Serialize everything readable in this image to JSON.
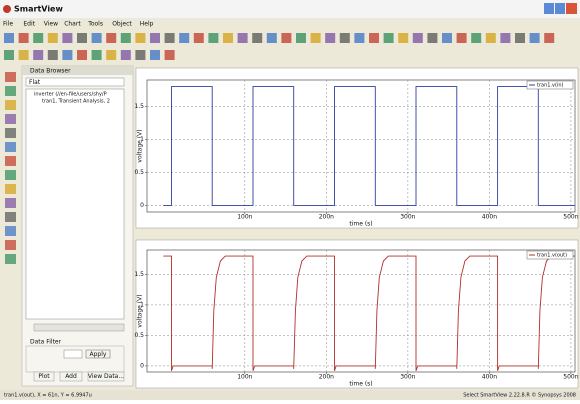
{
  "window": {
    "title": "SmartView"
  },
  "menu": [
    "File",
    "Edit",
    "View",
    "Chart",
    "Tools",
    "Object",
    "Help"
  ],
  "data_browser": {
    "title": "Data Browser",
    "filter_mode": "Flat",
    "tree": [
      "inverter (//en-file/users/shy/P",
      "tran1, Transient Analysis, 2"
    ],
    "filter_title": "Data Filter",
    "buttons": [
      "Apply",
      "Plot",
      "Add",
      "View Data..."
    ]
  },
  "charts": [
    {
      "type": "line",
      "xlabel": "time (s)",
      "ylabel": "voltage (V)",
      "xlim": [
        -20,
        505
      ],
      "ylim": [
        -0.1,
        1.9
      ],
      "xticks": [
        {
          "value": 100,
          "label": "100n"
        },
        {
          "value": 200,
          "label": "200n"
        },
        {
          "value": 300,
          "label": "300n"
        },
        {
          "value": 400,
          "label": "400n"
        },
        {
          "value": 500,
          "label": "500n"
        }
      ],
      "yticks": [
        0,
        0.5,
        1,
        1.5
      ],
      "grid": true,
      "legend": "upper right",
      "series": [
        {
          "name": "tran1.v(in)",
          "color": "#2f3f9f",
          "x": [
            0,
            10,
            10,
            60,
            60,
            110,
            110,
            160,
            160,
            210,
            210,
            260,
            260,
            310,
            310,
            360,
            360,
            410,
            410,
            460,
            460,
            505
          ],
          "y": [
            0,
            0,
            1.8,
            1.8,
            0,
            0,
            1.8,
            1.8,
            0,
            0,
            1.8,
            1.8,
            0,
            0,
            1.8,
            1.8,
            0,
            0,
            1.8,
            1.8,
            0,
            0
          ]
        }
      ]
    },
    {
      "type": "line",
      "xlabel": "time (s)",
      "ylabel": "voltage (V)",
      "xlim": [
        -20,
        505
      ],
      "ylim": [
        -0.1,
        1.9
      ],
      "xticks": [
        {
          "value": 100,
          "label": "100n"
        },
        {
          "value": 200,
          "label": "200n"
        },
        {
          "value": 300,
          "label": "300n"
        },
        {
          "value": 400,
          "label": "400n"
        },
        {
          "value": 500,
          "label": "500n"
        }
      ],
      "yticks": [
        0,
        0.5,
        1,
        1.5
      ],
      "grid": true,
      "legend": "upper right",
      "series": [
        {
          "name": "tran1.v(out)",
          "color": "#b0302a",
          "x": [
            0,
            10,
            10,
            12,
            60,
            60,
            62,
            65,
            70,
            76,
            110,
            110,
            112,
            160,
            160,
            162,
            165,
            170,
            176,
            210,
            210,
            212,
            260,
            260,
            262,
            265,
            270,
            276,
            310,
            310,
            312,
            360,
            360,
            362,
            365,
            370,
            376,
            410,
            410,
            412,
            460,
            460,
            462,
            465,
            470,
            476,
            505
          ],
          "y": [
            1.8,
            1.8,
            -0.08,
            0,
            0,
            -0.05,
            0.9,
            1.45,
            1.72,
            1.8,
            1.8,
            -0.08,
            0,
            0,
            -0.05,
            0.9,
            1.45,
            1.72,
            1.8,
            1.8,
            -0.08,
            0,
            0,
            -0.05,
            0.9,
            1.45,
            1.72,
            1.8,
            1.8,
            -0.08,
            0,
            0,
            -0.05,
            0.9,
            1.45,
            1.72,
            1.8,
            1.8,
            -0.08,
            0,
            0,
            -0.05,
            0.9,
            1.45,
            1.72,
            1.8,
            1.8
          ]
        }
      ]
    }
  ],
  "status": {
    "left": "tran1.v(out), X = 61n, Y = 6.9947u",
    "right": "Select  SmartView 2.22.8.R  © Synopsys 2008"
  }
}
